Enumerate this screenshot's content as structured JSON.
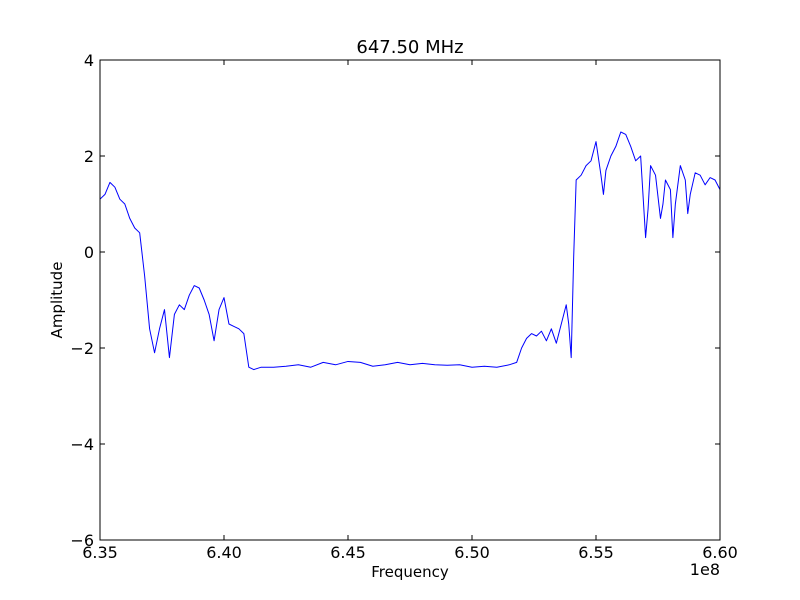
{
  "chart_data": {
    "type": "line",
    "title": "647.50 MHz",
    "xlabel": "Frequency",
    "ylabel": "Amplitude",
    "x_offset_label": "1e8",
    "xlim": [
      6.35,
      6.6
    ],
    "ylim": [
      -6,
      4
    ],
    "x_ticks": [
      6.35,
      6.4,
      6.45,
      6.5,
      6.55,
      6.6
    ],
    "x_tick_labels": [
      "6.35",
      "6.40",
      "6.45",
      "6.50",
      "6.55",
      "6.60"
    ],
    "y_ticks": [
      -6,
      -4,
      -2,
      0,
      2,
      4
    ],
    "y_tick_labels": [
      "−6",
      "−4",
      "−2",
      "0",
      "2",
      "4"
    ],
    "grid": false,
    "series": [
      {
        "color": "#0000ff",
        "x": [
          6.35,
          6.352,
          6.354,
          6.356,
          6.358,
          6.36,
          6.362,
          6.364,
          6.366,
          6.368,
          6.37,
          6.372,
          6.374,
          6.376,
          6.378,
          6.38,
          6.382,
          6.384,
          6.386,
          6.388,
          6.39,
          6.392,
          6.394,
          6.396,
          6.398,
          6.4,
          6.402,
          6.404,
          6.406,
          6.408,
          6.41,
          6.412,
          6.415,
          6.42,
          6.425,
          6.43,
          6.435,
          6.44,
          6.445,
          6.45,
          6.455,
          6.46,
          6.465,
          6.47,
          6.475,
          6.48,
          6.485,
          6.49,
          6.495,
          6.5,
          6.505,
          6.51,
          6.515,
          6.518,
          6.52,
          6.522,
          6.524,
          6.526,
          6.528,
          6.53,
          6.532,
          6.534,
          6.536,
          6.538,
          6.539,
          6.54,
          6.541,
          6.542,
          6.544,
          6.546,
          6.548,
          6.55,
          6.552,
          6.553,
          6.554,
          6.556,
          6.558,
          6.56,
          6.562,
          6.564,
          6.566,
          6.568,
          6.57,
          6.571,
          6.572,
          6.574,
          6.576,
          6.577,
          6.578,
          6.58,
          6.581,
          6.582,
          6.584,
          6.586,
          6.587,
          6.588,
          6.59,
          6.592,
          6.594,
          6.596,
          6.598,
          6.6
        ],
        "y": [
          1.1,
          1.2,
          1.45,
          1.35,
          1.1,
          1.0,
          0.7,
          0.5,
          0.4,
          -0.5,
          -1.6,
          -2.1,
          -1.6,
          -1.2,
          -2.2,
          -1.3,
          -1.1,
          -1.2,
          -0.9,
          -0.7,
          -0.75,
          -1.0,
          -1.3,
          -1.85,
          -1.2,
          -0.95,
          -1.5,
          -1.55,
          -1.6,
          -1.7,
          -2.4,
          -2.45,
          -2.4,
          -2.4,
          -2.38,
          -2.35,
          -2.4,
          -2.3,
          -2.35,
          -2.28,
          -2.3,
          -2.38,
          -2.35,
          -2.3,
          -2.35,
          -2.32,
          -2.35,
          -2.36,
          -2.35,
          -2.4,
          -2.38,
          -2.4,
          -2.35,
          -2.3,
          -2.0,
          -1.8,
          -1.7,
          -1.75,
          -1.65,
          -1.85,
          -1.6,
          -1.9,
          -1.5,
          -1.1,
          -1.5,
          -2.2,
          -0.1,
          1.5,
          1.6,
          1.8,
          1.9,
          2.3,
          1.6,
          1.2,
          1.7,
          2.0,
          2.2,
          2.5,
          2.45,
          2.2,
          1.9,
          2.0,
          0.3,
          0.9,
          1.8,
          1.6,
          0.7,
          1.0,
          1.5,
          1.3,
          0.3,
          1.0,
          1.8,
          1.5,
          0.8,
          1.2,
          1.65,
          1.6,
          1.4,
          1.55,
          1.5,
          1.3
        ]
      }
    ]
  }
}
